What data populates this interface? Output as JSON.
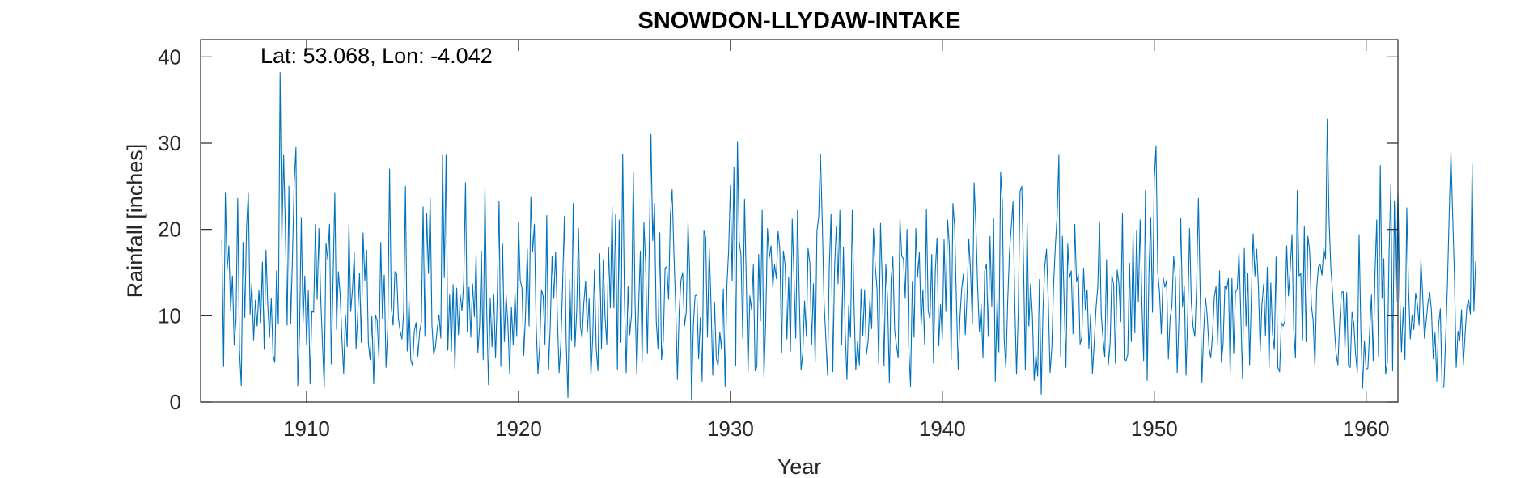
{
  "chart_data": {
    "type": "line",
    "title": "SNOWDON-LLYDAW-INTAKE",
    "annotation": "Lat: 53.068, Lon: -4.042",
    "xlabel": "Year",
    "ylabel": "Rainfall [inches]",
    "xlim": [
      1905,
      1961.5
    ],
    "ylim": [
      0,
      42
    ],
    "xticks": [
      1910,
      1920,
      1930,
      1940,
      1950,
      1960
    ],
    "yticks": [
      0,
      10,
      20,
      30,
      40
    ],
    "grid": false,
    "series": [
      {
        "color": "#0072BD",
        "x_start": 1906.0,
        "x_step": 0.0833333,
        "values": [
          18.8,
          4.1,
          24.2,
          15.3,
          18.1,
          10.6,
          14.6,
          6.6,
          9.4,
          23.6,
          6.0,
          1.9,
          18.5,
          9.8,
          20.3,
          24.2,
          10.2,
          13.7,
          7.2,
          11.8,
          8.8,
          12.9,
          9.2,
          16.2,
          6.1,
          17.6,
          11.3,
          7.5,
          12.0,
          5.4,
          4.6,
          15.2,
          9.1,
          38.2,
          18.7,
          28.6,
          20.1,
          8.9,
          25.0,
          9.1,
          16.7,
          25.4,
          29.5,
          1.9,
          8.0,
          21.4,
          9.2,
          14.6,
          6.7,
          12.9,
          2.1,
          10.5,
          10.4,
          20.6,
          11.9,
          20.1,
          12.1,
          6.8,
          1.7,
          18.4,
          16.5,
          20.6,
          4.4,
          14.1,
          24.2,
          8.4,
          15.1,
          12.5,
          7.4,
          3.3,
          10.1,
          6.4,
          20.6,
          10.5,
          13.1,
          17.3,
          6.2,
          10.3,
          14.9,
          6.9,
          19.6,
          14.1,
          17.6,
          6.8,
          4.9,
          9.9,
          2.1,
          10.1,
          9.4,
          5.0,
          18.5,
          9.6,
          14.7,
          4.0,
          8.5,
          27.0,
          10.9,
          8.9,
          15.1,
          14.9,
          9.7,
          8.2,
          7.3,
          10.5,
          25.0,
          5.9,
          11.8,
          4.9,
          4.2,
          8.2,
          9.2,
          5.3,
          8.1,
          9.3,
          22.6,
          7.6,
          21.9,
          14.9,
          23.6,
          8.9,
          5.5,
          6.4,
          8.5,
          10.1,
          7.4,
          28.6,
          14.4,
          28.6,
          6.0,
          12.4,
          5.9,
          13.6,
          3.8,
          13.2,
          7.8,
          12.4,
          10.6,
          14.0,
          25.4,
          8.2,
          13.3,
          7.5,
          13.7,
          9.9,
          17.1,
          5.7,
          8.9,
          17.5,
          4.9,
          24.9,
          10.6,
          2.0,
          12.0,
          6.4,
          12.4,
          5.1,
          12.4,
          23.3,
          4.1,
          18.3,
          7.0,
          12.4,
          9.1,
          3.3,
          11.0,
          6.6,
          12.7,
          7.6,
          20.8,
          14.1,
          13.2,
          5.4,
          10.3,
          17.7,
          8.8,
          23.8,
          17.4,
          20.6,
          8.9,
          3.3,
          6.4,
          13.0,
          12.2,
          6.7,
          21.6,
          3.7,
          9.0,
          16.9,
          12.0,
          17.4,
          10.0,
          3.4,
          6.8,
          13.6,
          21.5,
          7.1,
          0.5,
          14.2,
          7.2,
          23.0,
          6.4,
          10.7,
          20.1,
          8.9,
          7.4,
          11.5,
          14.0,
          8.1,
          12.0,
          3.1,
          7.3,
          15.3,
          6.2,
          3.6,
          17.2,
          6.2,
          16.5,
          9.9,
          6.7,
          17.9,
          10.9,
          22.7,
          10.9,
          21.8,
          3.8,
          21.1,
          6.9,
          28.7,
          11.8,
          3.4,
          13.4,
          7.8,
          10.1,
          26.6,
          11.7,
          3.2,
          10.9,
          17.5,
          4.6,
          20.8,
          16.1,
          5.6,
          17.4,
          31.0,
          18.7,
          23.0,
          9.4,
          6.2,
          19.6,
          4.9,
          7.1,
          15.5,
          15.7,
          11.9,
          21.6,
          24.6,
          17.2,
          11.2,
          2.6,
          10.6,
          14.1,
          15.0,
          8.8,
          10.4,
          20.8,
          14.6,
          0.2,
          8.8,
          12.3,
          12.4,
          5.0,
          9.8,
          2.4,
          19.9,
          19.1,
          7.5,
          17.8,
          11.6,
          3.1,
          11.6,
          5.1,
          4.2,
          8.1,
          6.1,
          13.1,
          1.8,
          13.4,
          17.6,
          25.1,
          14.1,
          27.2,
          4.2,
          30.2,
          18.6,
          17.0,
          7.4,
          23.5,
          14.0,
          3.5,
          12.3,
          10.7,
          15.9,
          3.6,
          4.1,
          17.1,
          9.4,
          22.2,
          2.9,
          9.4,
          20.1,
          16.7,
          18.1,
          13.3,
          15.9,
          14.3,
          19.8,
          17.7,
          5.7,
          17.5,
          15.9,
          7.3,
          14.5,
          5.9,
          21.2,
          14.6,
          7.4,
          22.2,
          12.3,
          3.7,
          5.7,
          11.7,
          7.6,
          17.8,
          16.1,
          6.7,
          13.7,
          4.7,
          19.8,
          21.5,
          28.7,
          21.0,
          11.7,
          7.6,
          3.1,
          15.7,
          21.8,
          3.5,
          15.6,
          20.4,
          13.7,
          22.2,
          6.6,
          17.9,
          8.2,
          2.6,
          11.2,
          7.5,
          22.2,
          11.3,
          3.7,
          7.0,
          4.3,
          13.1,
          7.7,
          13.0,
          5.5,
          7.1,
          11.9,
          8.5,
          20.1,
          15.8,
          13.2,
          4.4,
          20.7,
          13.8,
          4.2,
          16.0,
          11.9,
          2.3,
          14.1,
          16.8,
          8.3,
          6.6,
          5.1,
          21.2,
          16.9,
          16.6,
          12.0,
          20.0,
          6.3,
          1.8,
          13.9,
          7.5,
          20.1,
          14.5,
          17.3,
          8.8,
          13.0,
          6.6,
          22.3,
          10.6,
          9.6,
          17.1,
          4.5,
          15.0,
          19.0,
          6.5,
          11.3,
          7.3,
          18.8,
          10.5,
          21.1,
          18.0,
          4.9,
          23.0,
          20.3,
          11.4,
          3.8,
          9.9,
          13.2,
          14.9,
          7.8,
          12.4,
          18.9,
          15.0,
          9.0,
          25.4,
          20.5,
          13.3,
          8.2,
          11.3,
          5.1,
          15.2,
          16.0,
          7.6,
          19.2,
          11.1,
          21.3,
          2.4,
          11.9,
          5.8,
          26.6,
          23.1,
          7.3,
          3.9,
          11.6,
          17.3,
          20.2,
          23.2,
          11.7,
          3.2,
          10.5,
          24.4,
          25.0,
          15.6,
          3.7,
          20.8,
          8.8,
          13.7,
          10.0,
          2.5,
          5.5,
          3.0,
          14.2,
          0.9,
          10.7,
          15.7,
          17.7,
          11.6,
          3.4,
          6.3,
          13.6,
          18.1,
          21.6,
          28.6,
          5.3,
          19.2,
          11.5,
          4.0,
          18.3,
          14.4,
          15.2,
          7.9,
          20.6,
          13.9,
          14.8,
          6.7,
          7.5,
          15.5,
          10.7,
          13.0,
          6.2,
          10.2,
          3.3,
          6.8,
          10.8,
          13.3,
          20.9,
          10.1,
          7.3,
          5.2,
          16.5,
          4.3,
          6.8,
          14.7,
          13.6,
          4.5,
          15.3,
          13.7,
          9.3,
          21.9,
          4.9,
          4.8,
          5.5,
          16.1,
          7.0,
          19.4,
          8.0,
          19.9,
          11.6,
          21.1,
          11.5,
          4.8,
          24.5,
          2.5,
          15.1,
          21.4,
          10.4,
          25.7,
          29.7,
          15.0,
          12.7,
          7.9,
          14.5,
          13.3,
          14.1,
          5.0,
          9.7,
          11.1,
          16.9,
          14.3,
          3.4,
          9.7,
          21.3,
          11.1,
          13.4,
          3.1,
          10.4,
          20.1,
          11.5,
          8.7,
          7.6,
          13.4,
          23.6,
          12.9,
          2.3,
          8.2,
          12.1,
          10.0,
          6.3,
          5.1,
          7.7,
          12.1,
          13.4,
          6.6,
          15.2,
          4.6,
          6.7,
          13.4,
          13.1,
          14.3,
          3.3,
          14.3,
          5.6,
          12.7,
          13.1,
          17.3,
          10.3,
          2.7,
          17.8,
          8.8,
          14.9,
          4.3,
          12.3,
          19.5,
          14.6,
          17.7,
          13.3,
          5.9,
          11.4,
          13.7,
          7.7,
          15.6,
          3.9,
          13.8,
          7.9,
          6.1,
          16.8,
          4.0,
          3.5,
          9.2,
          8.8,
          9.4,
          18.1,
          12.3,
          15.4,
          19.4,
          8.5,
          5.1,
          24.5,
          14.6,
          14.9,
          7.2,
          20.4,
          7.0,
          19.2,
          17.5,
          11.2,
          9.4,
          4.1,
          13.2,
          15.7,
          15.9,
          14.7,
          17.8,
          16.6,
          32.8,
          21.1,
          15.6,
          12.6,
          8.7,
          5.6,
          4.3,
          9.1,
          12.7,
          12.8,
          6.2,
          12.7,
          4.2,
          4.0,
          10.4,
          9.1,
          5.7,
          3.4,
          19.4,
          8.4,
          1.6,
          7.1,
          3.8,
          3.9,
          8.2,
          12.4,
          4.8,
          14.8,
          21.1,
          5.3,
          27.4,
          12.0,
          16.6,
          3.2,
          4.6,
          17.5,
          25.2,
          3.6,
          23.3,
          11.6,
          24.5,
          12.6,
          5.8,
          10.9,
          4.9,
          22.5,
          13.2,
          7.3,
          10.0,
          8.4,
          12.6,
          11.4,
          8.9,
          16.4,
          12.4,
          7.4,
          9.4,
          11.5,
          12.7,
          10.5,
          5.0,
          8.0,
          2.4,
          8.9,
          10.8,
          1.7,
          1.7,
          7.3,
          13.5,
          21.6,
          28.9,
          21.6,
          14.6,
          4.0,
          8.2,
          7.1,
          10.7,
          4.3,
          7.8,
          11.0,
          11.8,
          10.2,
          27.6,
          10.5,
          16.3
        ]
      }
    ]
  }
}
